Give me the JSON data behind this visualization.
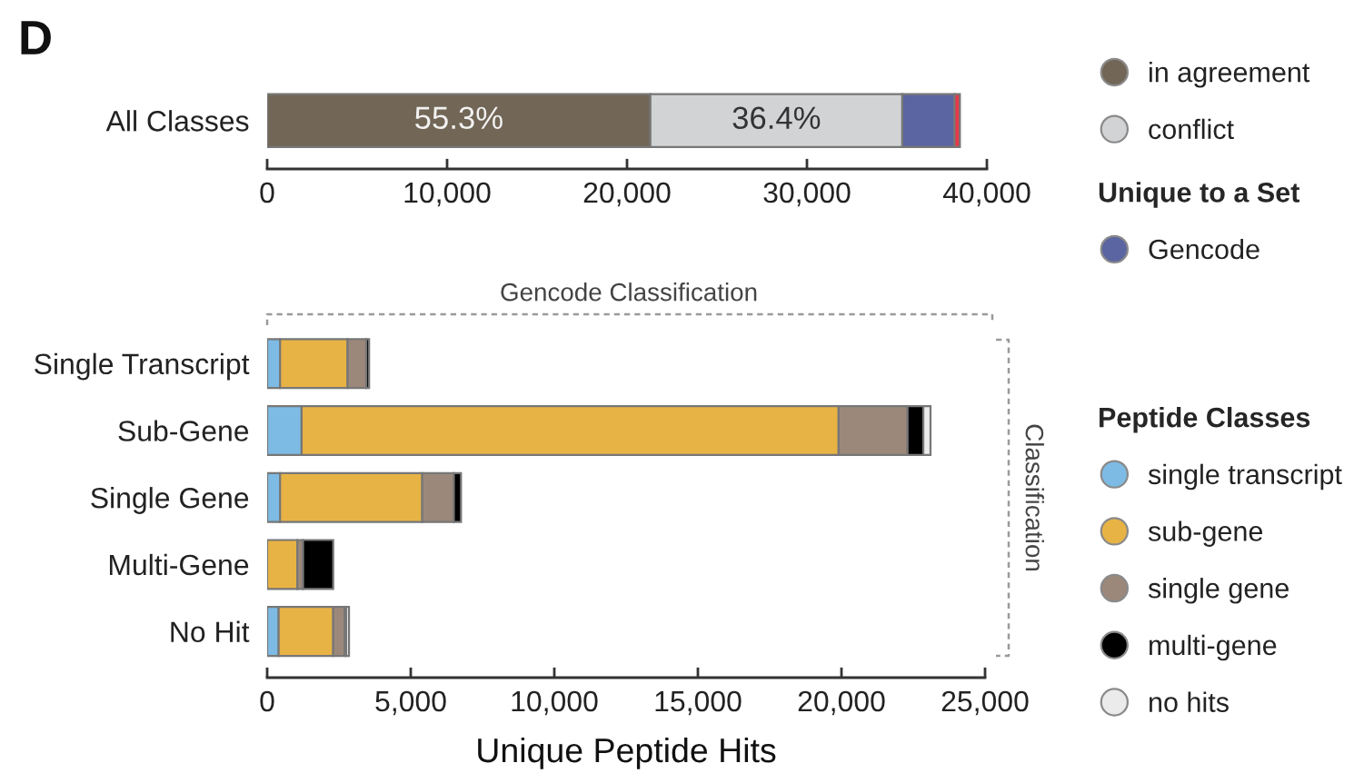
{
  "chart_data": [
    {
      "type": "bar",
      "orientation": "horizontal",
      "stacked": true,
      "categories": [
        "All Classes"
      ],
      "series": [
        {
          "name": "in agreement",
          "color": "#726656",
          "values": [
            21300
          ]
        },
        {
          "name": "conflict",
          "color": "#d2d3d5",
          "values": [
            14000
          ]
        },
        {
          "name": "Gencode",
          "color": "#5b65a2",
          "values": [
            2900
          ]
        },
        {
          "color": "#e5394b",
          "values": [
            300
          ]
        }
      ],
      "xlim": [
        0,
        40000
      ],
      "xticks": [
        0,
        {
          "value": 10000,
          "label": "10,000"
        },
        {
          "value": 20000,
          "label": "20,000"
        },
        {
          "value": 30000,
          "label": "30,000"
        },
        {
          "value": 40000,
          "label": "40,000"
        }
      ],
      "legend": "right",
      "legend_title": "Unique to a Set",
      "annotations": [
        "D",
        "55.3%",
        "36.4%"
      ]
    },
    {
      "type": "bar",
      "orientation": "horizontal",
      "stacked": true,
      "categories": [
        "Single Transcript",
        "Sub-Gene",
        "Single Gene",
        "Multi-Gene",
        "No Hit"
      ],
      "series": [
        {
          "name": "single transcript",
          "color": "#7dbbe4",
          "values": [
            450,
            1200,
            450,
            null,
            400
          ]
        },
        {
          "name": "sub-gene",
          "color": "#e8b345",
          "values": [
            2350,
            18700,
            4950,
            1050,
            1900
          ]
        },
        {
          "name": "single gene",
          "color": "#9c887a",
          "values": [
            650,
            2400,
            1100,
            200,
            400
          ]
        },
        {
          "name": "multi-gene",
          "color": "#000000",
          "values": [
            100,
            550,
            250,
            1050,
            50
          ]
        },
        {
          "name": "no hits",
          "color": "#ebebeb",
          "values": [
            null,
            250,
            null,
            null,
            100
          ]
        }
      ],
      "xlim": [
        0,
        25000
      ],
      "xticks": [
        0,
        {
          "value": 5000,
          "label": "5,000"
        },
        {
          "value": 10000,
          "label": "10,000"
        },
        {
          "value": 15000,
          "label": "15,000"
        },
        {
          "value": 20000,
          "label": "20,000"
        },
        {
          "value": 25000,
          "label": "25,000"
        }
      ],
      "xlabel": "Unique Peptide Hits",
      "legend": "right",
      "legend_title": "Peptide Classes",
      "annotations": [
        "Gencode Classification",
        "Classification"
      ]
    }
  ]
}
